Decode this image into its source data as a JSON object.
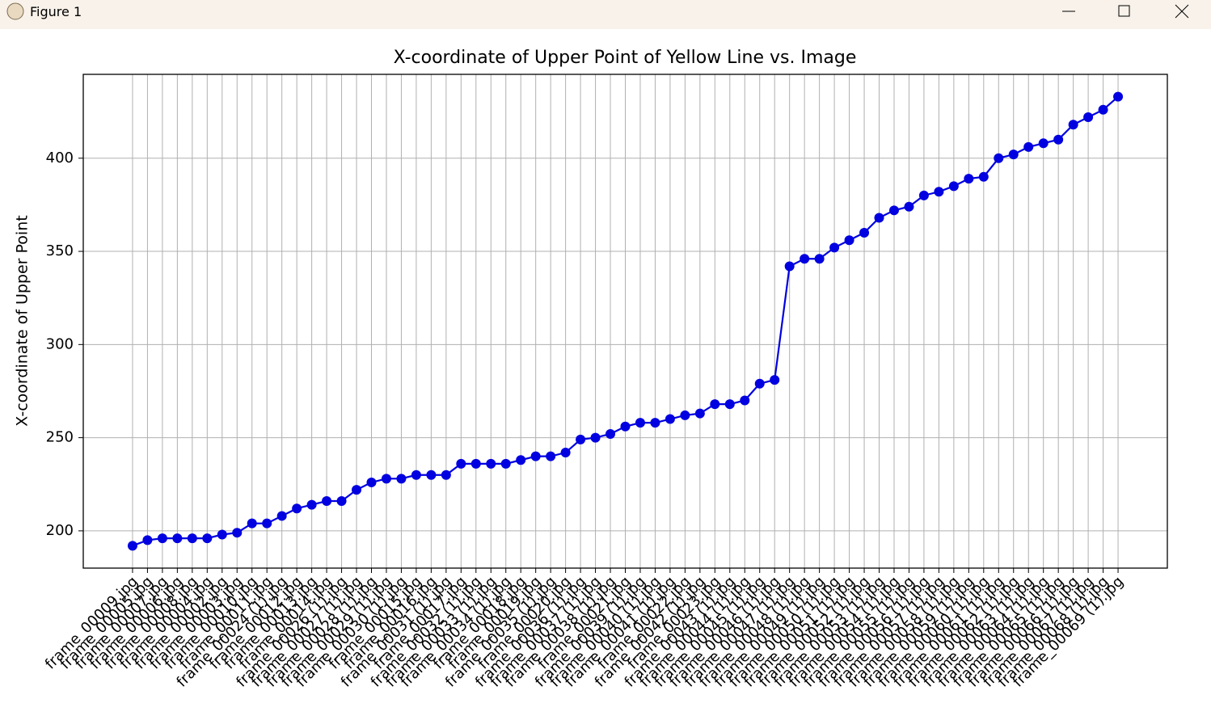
{
  "window": {
    "title": "Figure 1"
  },
  "chart_data": {
    "type": "line",
    "title": "X-coordinate of Upper Point of Yellow Line vs. Image",
    "ylabel": "X-coordinate of Upper Point",
    "categories": [
      "frame_00009.jpg",
      "frame_00005.jpg",
      "frame_00007.jpg",
      "frame_00006.jpg",
      "frame_00008.jpg",
      "frame_00004.jpg",
      "frame_00002.jpg",
      "frame_00003.jpg",
      "frame_00010.jpg",
      "frame_00011.jpg",
      "frame_00024 (1).jpg",
      "frame_00012.jpg",
      "frame_00013.jpg",
      "frame_00014.jpg",
      "frame_00026 (1).jpg",
      "frame_00027 (1).jpg",
      "frame_00028 (1).jpg",
      "frame_00029 (1).jpg",
      "frame_00030 (1).jpg",
      "frame_00015.jpg",
      "frame_00016.jpg",
      "frame_00031 (1).jpg",
      "frame_00017.jpg",
      "frame_00032 (1).jpg",
      "frame_00033 (1).jpg",
      "frame_00034 (1).jpg",
      "frame_00018.jpg",
      "frame_00019.jpg",
      "frame_00035 (1).jpg",
      "frame_00020.jpg",
      "frame_00036 (1).jpg",
      "frame_00037 (1).jpg",
      "frame_00038 (1).jpg",
      "frame_00021.jpg",
      "frame_00039 (1).jpg",
      "frame_00040 (1).jpg",
      "frame_00041 (1).jpg",
      "frame_00022.jpg",
      "frame_00042 (1).jpg",
      "frame_00023.jpg",
      "frame_00043 (1).jpg",
      "frame_00044 (1).jpg",
      "frame_00045 (1).jpg",
      "frame_00046 (1).jpg",
      "frame_00047 (1).jpg",
      "frame_00048 (1).jpg",
      "frame_00049 (1).jpg",
      "frame_00050 (1).jpg",
      "frame_00051 (1).jpg",
      "frame_00052 (1).jpg",
      "frame_00053 (1).jpg",
      "frame_00054 (1).jpg",
      "frame_00055 (1).jpg",
      "frame_00056 (1).jpg",
      "frame_00057 (1).jpg",
      "frame_00058 (1).jpg",
      "frame_00059 (1).jpg",
      "frame_00060 (1).jpg",
      "frame_00061 (1).jpg",
      "frame_00062 (1).jpg",
      "frame_00063 (1).jpg",
      "frame_00064 (1).jpg",
      "frame_00065 (1).jpg",
      "frame_00066 (1).jpg",
      "frame_00067 (1).jpg",
      "frame_00068 (1).jpg",
      "frame_00069 (1).jpg"
    ],
    "series": [
      {
        "name": "X-coordinate",
        "color": "#0000e0",
        "values": [
          192,
          195,
          196,
          196,
          196,
          196,
          198,
          199,
          204,
          204,
          208,
          212,
          214,
          216,
          216,
          222,
          226,
          228,
          228,
          230,
          230,
          230,
          236,
          236,
          236,
          236,
          238,
          240,
          240,
          242,
          249,
          250,
          252,
          256,
          258,
          258,
          260,
          262,
          263,
          268,
          268,
          270,
          279,
          281,
          342,
          346,
          346,
          352,
          356,
          360,
          368,
          372,
          374,
          380,
          382,
          385,
          389,
          390,
          400,
          402,
          406,
          408,
          410,
          418,
          422,
          426,
          433
        ]
      }
    ],
    "ylim": [
      180,
      445
    ],
    "yticks": [
      200,
      250,
      300,
      350,
      400
    ],
    "grid": true
  }
}
